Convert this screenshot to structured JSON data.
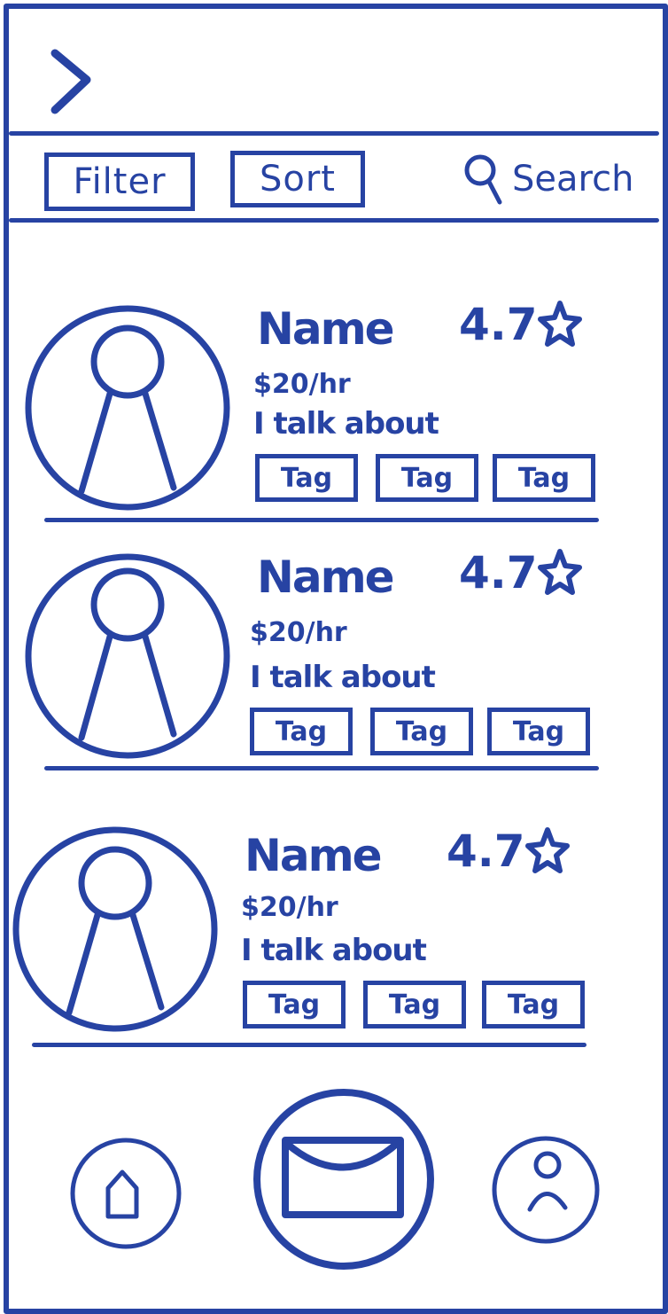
{
  "toolbar": {
    "filter_label": "Filter",
    "sort_label": "Sort",
    "search_label": "Search"
  },
  "listings": [
    {
      "name": "Name",
      "rating": "4.7",
      "price": "$20/hr",
      "about": "I talk about",
      "tags": [
        "Tag",
        "Tag",
        "Tag"
      ]
    },
    {
      "name": "Name",
      "rating": "4.7",
      "price": "$20/hr",
      "about": "I talk about",
      "tags": [
        "Tag",
        "Tag",
        "Tag"
      ]
    },
    {
      "name": "Name",
      "rating": "4.7",
      "price": "$20/hr",
      "about": "I talk about",
      "tags": [
        "Tag",
        "Tag",
        "Tag"
      ]
    }
  ],
  "icons": {
    "back": "chevron-right-icon",
    "search": "search-icon",
    "star": "star-icon",
    "avatar": "person-icon",
    "home": "home-icon",
    "mail": "mail-icon",
    "profile": "profile-icon"
  },
  "colors": {
    "ink": "#2743a3",
    "background": "#ffffff"
  }
}
